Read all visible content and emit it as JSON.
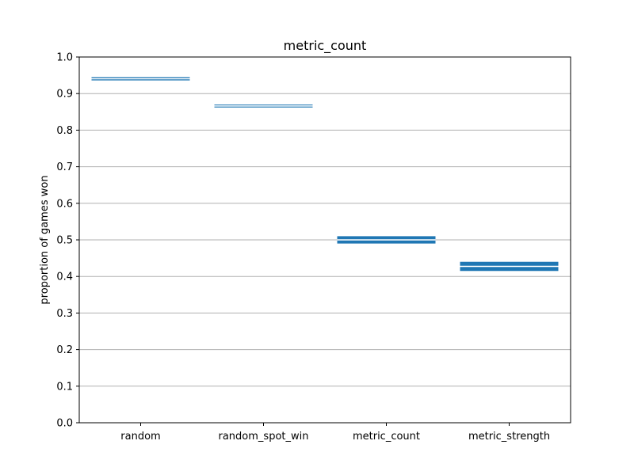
{
  "chart_data": {
    "type": "bar",
    "title": "metric_count",
    "xlabel": "",
    "ylabel": "proportion of games won",
    "categories": [
      "random",
      "random_spot_win",
      "metric_count",
      "metric_strength"
    ],
    "series": [
      {
        "low": [
          0.936,
          0.862,
          0.49,
          0.415
        ],
        "high": [
          0.945,
          0.87,
          0.51,
          0.44
        ]
      }
    ],
    "ylim": [
      0.0,
      1.0
    ],
    "yticks": [
      "0.0",
      "0.1",
      "0.2",
      "0.3",
      "0.4",
      "0.5",
      "0.6",
      "0.7",
      "0.8",
      "0.9",
      "1.0"
    ],
    "ytick_values": [
      0.0,
      0.1,
      0.2,
      0.3,
      0.4,
      0.5,
      0.6,
      0.7,
      0.8,
      0.9,
      1.0
    ],
    "grid": "y",
    "bar_color": "#1f77b4",
    "inner_line_color": "#ffffff"
  }
}
